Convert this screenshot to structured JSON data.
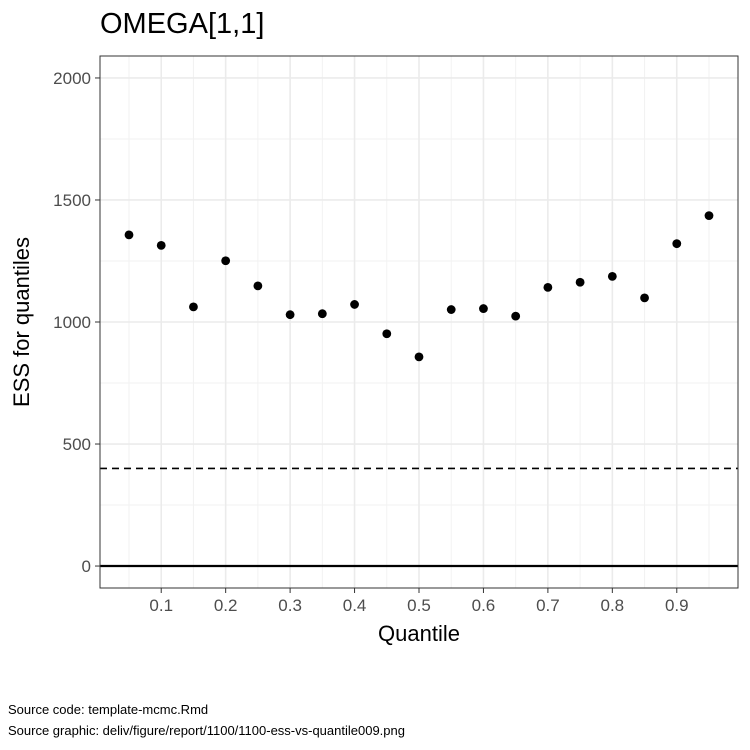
{
  "chart_data": {
    "type": "scatter",
    "title": "OMEGA[1,1]",
    "xlabel": "Quantile",
    "ylabel": "ESS for quantiles",
    "xlim": [
      0.005,
      0.995
    ],
    "ylim": [
      -90,
      2090
    ],
    "x_ticks": [
      0.1,
      0.2,
      0.3,
      0.4,
      0.5,
      0.6,
      0.7,
      0.8,
      0.9
    ],
    "x_tick_labels": [
      "0.1",
      "0.2",
      "0.3",
      "0.4",
      "0.5",
      "0.6",
      "0.7",
      "0.8",
      "0.9"
    ],
    "x_minor_ticks": [
      0.05,
      0.15,
      0.25,
      0.35,
      0.45,
      0.55,
      0.65,
      0.75,
      0.85,
      0.95
    ],
    "y_ticks": [
      0,
      500,
      1000,
      1500,
      2000
    ],
    "y_tick_labels": [
      "0",
      "500",
      "1000",
      "1500",
      "2000"
    ],
    "y_minor_ticks": [
      250,
      750,
      1250,
      1750
    ],
    "grid": true,
    "reference_lines": [
      {
        "y": 0,
        "style": "solid"
      },
      {
        "y": 400,
        "style": "dashed"
      }
    ],
    "x": [
      0.05,
      0.1,
      0.15,
      0.2,
      0.25,
      0.3,
      0.35,
      0.4,
      0.45,
      0.5,
      0.55,
      0.6,
      0.65,
      0.7,
      0.75,
      0.8,
      0.85,
      0.9,
      0.95
    ],
    "y": [
      1357,
      1314,
      1062,
      1251,
      1148,
      1030,
      1034,
      1072,
      952,
      857,
      1051,
      1055,
      1024,
      1142,
      1163,
      1187,
      1099,
      1321,
      1436
    ],
    "colors": {
      "point": "#000000",
      "grid_major": "#ebebeb",
      "grid_minor": "#f2f2f2",
      "panel_border": "#333333",
      "tick_label": "#4d4d4d"
    }
  },
  "footer": {
    "source_code": "Source code: template-mcmc.Rmd",
    "source_graphic": "Source graphic: deliv/figure/report/1100/1100-ess-vs-quantile009.png"
  }
}
